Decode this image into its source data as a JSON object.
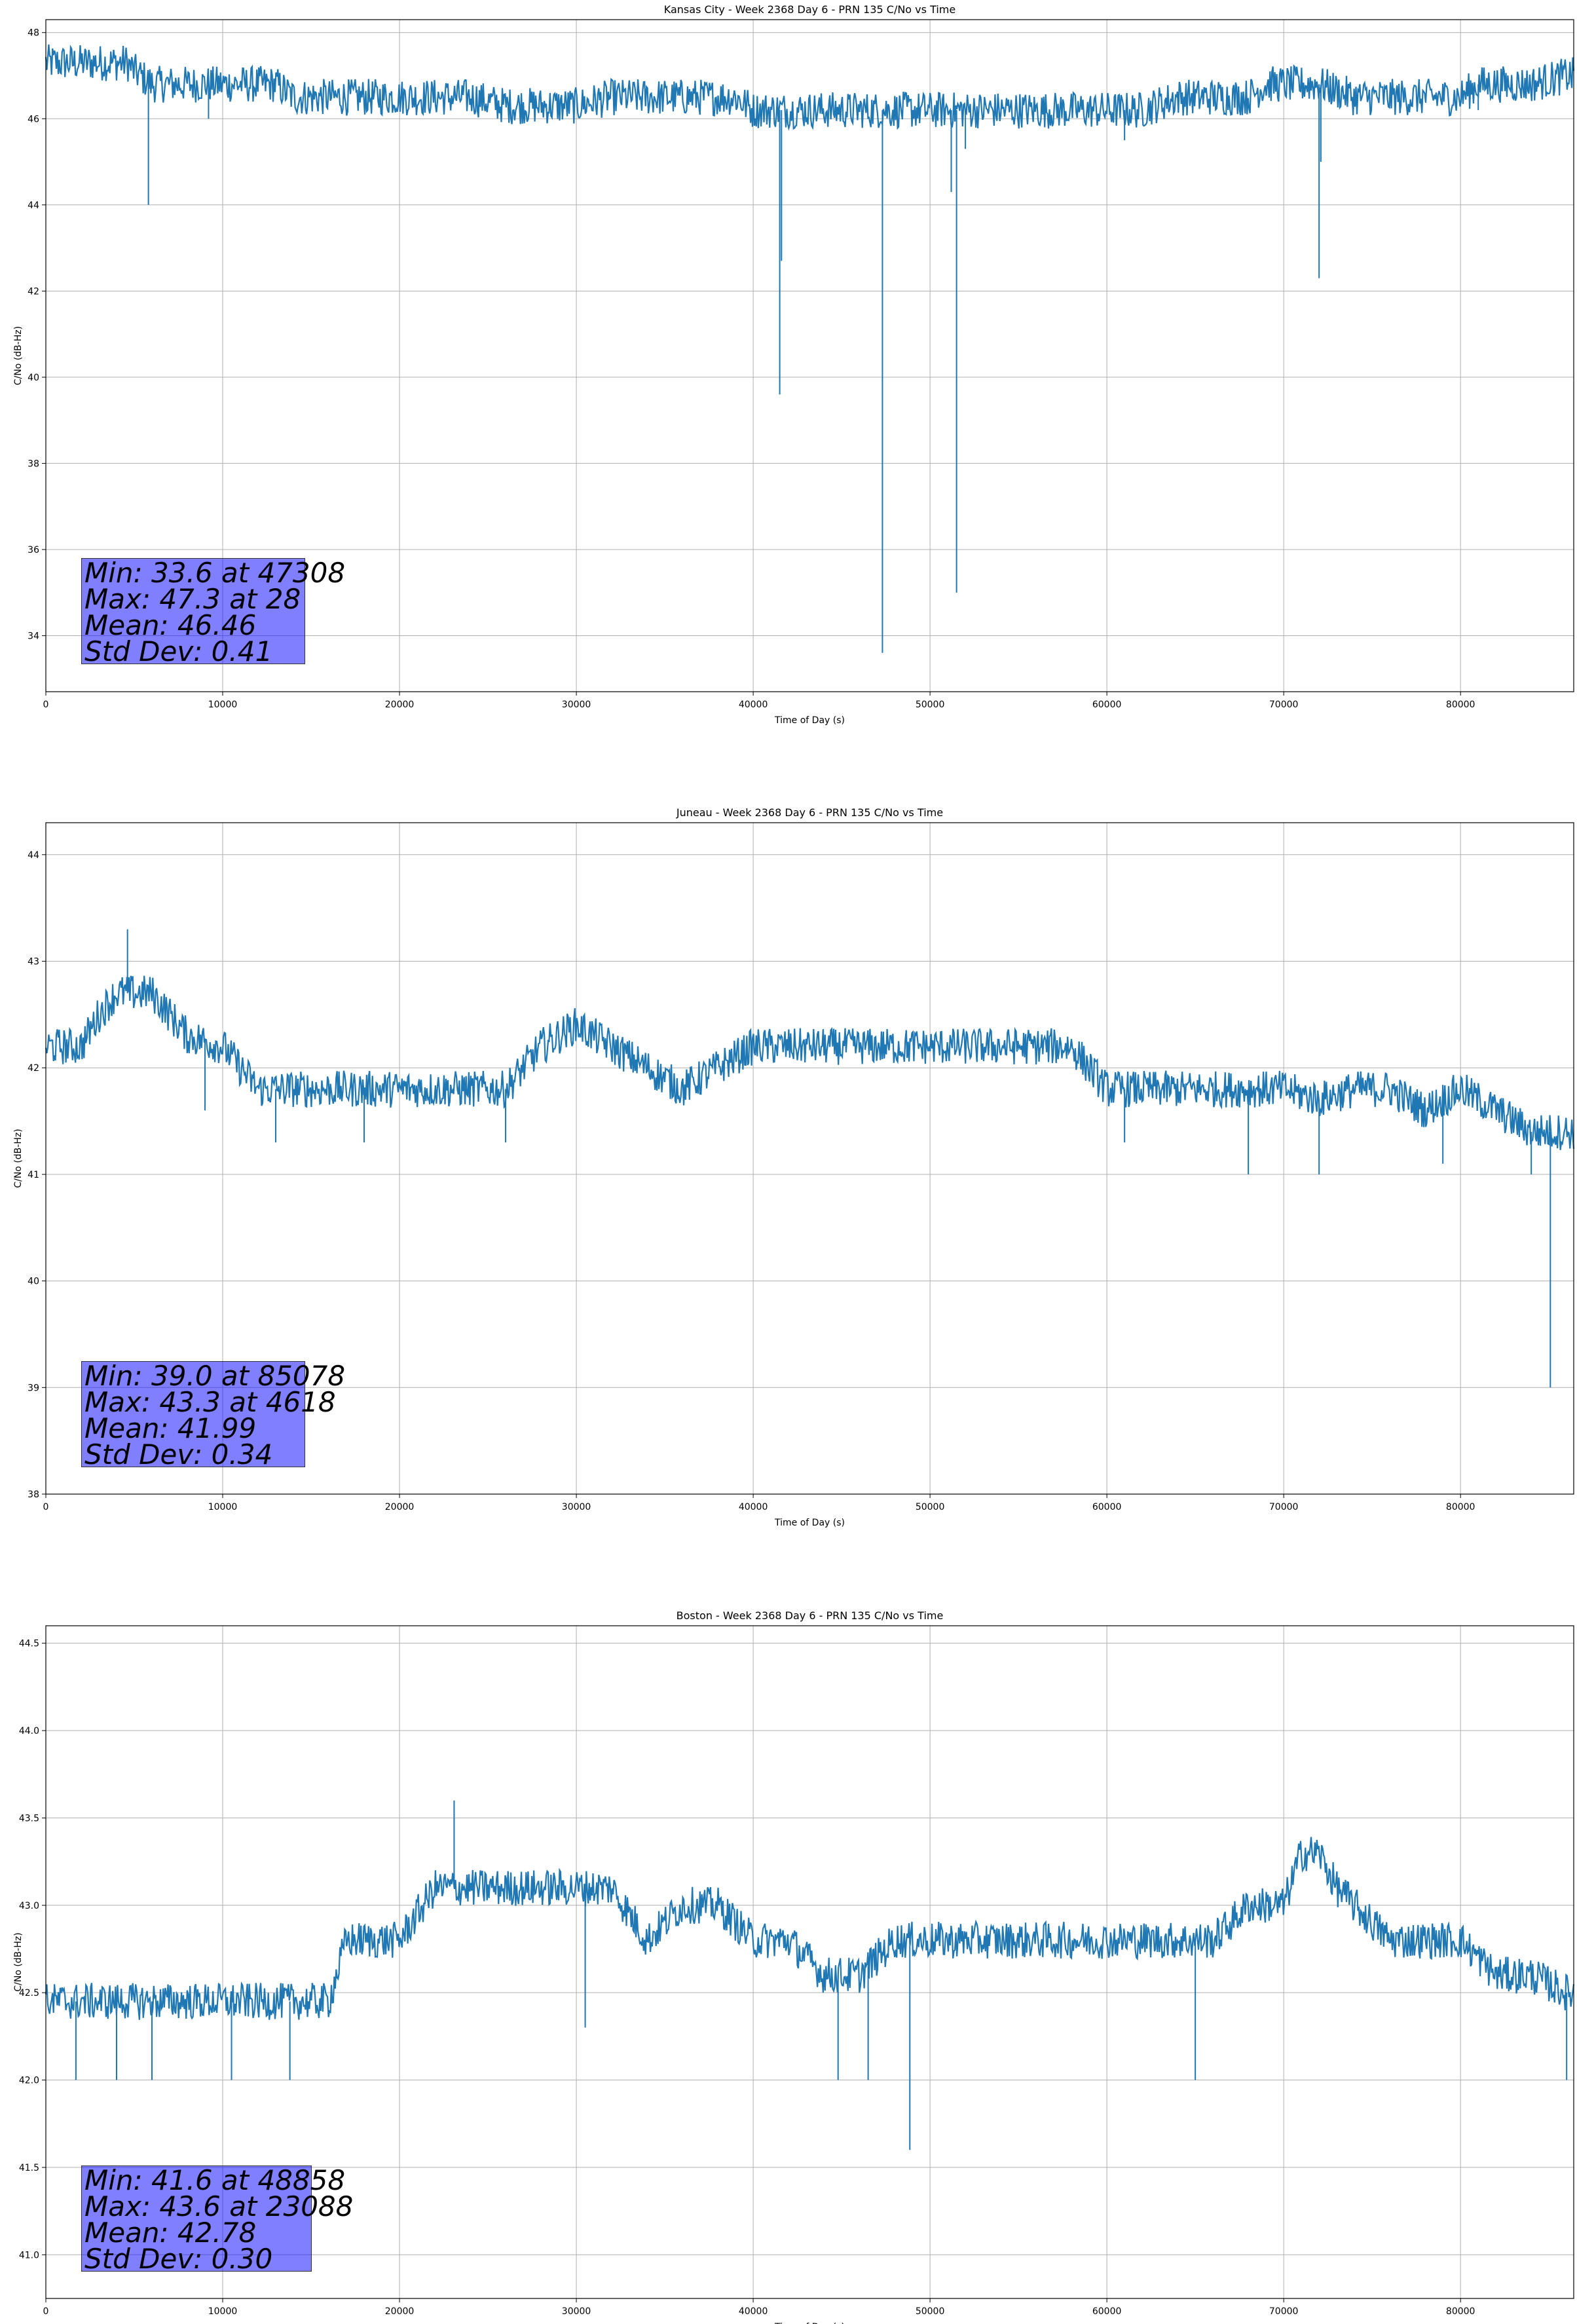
{
  "chart_data": [
    {
      "type": "line",
      "title": "Kansas City - Week 2368 Day 6 - PRN 135 C/No vs Time",
      "xlabel": "Time of Day (s)",
      "ylabel": "C/No (dB-Hz)",
      "xlim": [
        0,
        86400
      ],
      "ylim": [
        32.7,
        48.3
      ],
      "xticks": [
        0,
        10000,
        20000,
        30000,
        40000,
        50000,
        60000,
        70000,
        80000
      ],
      "yticks": [
        34,
        36,
        38,
        40,
        42,
        44,
        46,
        48
      ],
      "ytick_labels": [
        "34",
        "36",
        "38",
        "40",
        "42",
        "44",
        "46",
        "48"
      ],
      "grid": true,
      "color": "#1f77b4",
      "stats": [
        "Min: 33.6 at 47308",
        "Max: 47.3 at 28",
        "Mean: 46.46",
        "Std Dev: 0.41"
      ],
      "series": [
        {
          "x": [
            0,
            2000,
            4000,
            4600,
            5000,
            6000,
            8000,
            10000,
            12000,
            13000,
            14000,
            16000,
            18000,
            20000,
            22000,
            24000,
            26000,
            28000,
            30000,
            32000,
            34000,
            36000,
            38000,
            39000,
            40000,
            41000,
            42000,
            44000,
            46000,
            47000,
            48000,
            50000,
            52000,
            54000,
            56000,
            58000,
            60000,
            62000,
            64000,
            65000,
            66000,
            68000,
            69000,
            70000,
            72000,
            74000,
            76000,
            78000,
            80000,
            81000,
            82000,
            84000,
            86000
          ],
          "base": [
            47.3,
            47.3,
            47.3,
            47.3,
            47.1,
            46.8,
            46.8,
            46.8,
            46.8,
            46.8,
            46.5,
            46.5,
            46.5,
            46.5,
            46.5,
            46.5,
            46.3,
            46.3,
            46.3,
            46.5,
            46.5,
            46.5,
            46.5,
            46.5,
            46.2,
            46.2,
            46.2,
            46.2,
            46.2,
            46.2,
            46.2,
            46.2,
            46.2,
            46.2,
            46.2,
            46.2,
            46.2,
            46.2,
            46.5,
            46.5,
            46.5,
            46.5,
            46.8,
            46.8,
            46.8,
            46.5,
            46.5,
            46.5,
            46.5,
            46.8,
            46.8,
            46.8,
            47.0
          ],
          "spikes": [
            [
              5800,
              44.0
            ],
            [
              9200,
              46.0
            ],
            [
              41500,
              39.6
            ],
            [
              41600,
              42.7
            ],
            [
              47308,
              33.6
            ],
            [
              51200,
              44.3
            ],
            [
              51500,
              35.0
            ],
            [
              52000,
              45.3
            ],
            [
              61000,
              45.5
            ],
            [
              72000,
              42.3
            ],
            [
              72100,
              45.0
            ],
            [
              81000,
              46.2
            ]
          ]
        }
      ]
    },
    {
      "type": "line",
      "title": "Juneau - Week 2368 Day 6 - PRN 135 C/No vs Time",
      "xlabel": "Time of Day (s)",
      "ylabel": "C/No (dB-Hz)",
      "xlim": [
        0,
        86400
      ],
      "ylim": [
        38.0,
        44.3
      ],
      "xticks": [
        0,
        10000,
        20000,
        30000,
        40000,
        50000,
        60000,
        70000,
        80000
      ],
      "yticks": [
        38,
        39,
        40,
        41,
        42,
        43,
        44
      ],
      "ytick_labels": [
        "38",
        "39",
        "40",
        "41",
        "42",
        "43",
        "44"
      ],
      "grid": true,
      "color": "#1f77b4",
      "stats": [
        "Min: 39.0 at 85078",
        "Max: 43.3 at 4618",
        "Mean: 41.99",
        "Std Dev: 0.34"
      ],
      "series": [
        {
          "x": [
            0,
            2000,
            3000,
            4000,
            5000,
            6000,
            7000,
            8000,
            10000,
            12000,
            14000,
            16000,
            18000,
            20000,
            22000,
            24000,
            26000,
            28000,
            30000,
            32000,
            34000,
            36000,
            38000,
            40000,
            42000,
            44000,
            46000,
            48000,
            50000,
            52000,
            54000,
            56000,
            58000,
            60000,
            62000,
            64000,
            66000,
            68000,
            70000,
            72000,
            74000,
            76000,
            78000,
            80000,
            82000,
            84000,
            86000
          ],
          "base": [
            42.2,
            42.2,
            42.5,
            42.7,
            42.7,
            42.7,
            42.5,
            42.3,
            42.2,
            41.8,
            41.8,
            41.8,
            41.8,
            41.8,
            41.8,
            41.8,
            41.8,
            42.2,
            42.4,
            42.2,
            42.0,
            41.8,
            42.0,
            42.2,
            42.2,
            42.2,
            42.2,
            42.2,
            42.2,
            42.2,
            42.2,
            42.2,
            42.2,
            41.8,
            41.8,
            41.8,
            41.8,
            41.8,
            41.8,
            41.7,
            41.8,
            41.8,
            41.6,
            41.8,
            41.6,
            41.4,
            41.4
          ],
          "spikes": [
            [
              4618,
              43.3
            ],
            [
              9000,
              41.6
            ],
            [
              13000,
              41.3
            ],
            [
              18000,
              41.3
            ],
            [
              26000,
              41.3
            ],
            [
              61000,
              41.3
            ],
            [
              68000,
              41.0
            ],
            [
              72000,
              41.0
            ],
            [
              79000,
              41.1
            ],
            [
              84000,
              41.0
            ],
            [
              85078,
              39.0
            ]
          ]
        }
      ]
    },
    {
      "type": "line",
      "title": "Boston - Week 2368 Day 6 - PRN 135 C/No vs Time",
      "xlabel": "Time of Day (s)",
      "ylabel": "C/No (dB-Hz)",
      "xlim": [
        0,
        86400
      ],
      "ylim": [
        40.75,
        44.6
      ],
      "xticks": [
        0,
        10000,
        20000,
        30000,
        40000,
        50000,
        60000,
        70000,
        80000
      ],
      "yticks": [
        41.0,
        41.5,
        42.0,
        42.5,
        43.0,
        43.5,
        44.0,
        44.5
      ],
      "ytick_labels": [
        "41.0",
        "41.5",
        "42.0",
        "42.5",
        "43.0",
        "43.5",
        "44.0",
        "44.5"
      ],
      "grid": true,
      "color": "#1f77b4",
      "stats": [
        "Min: 41.6 at 48858",
        "Max: 43.6 at 23088",
        "Mean: 42.78",
        "Std Dev: 0.30"
      ],
      "series": [
        {
          "x": [
            0,
            2000,
            4000,
            6000,
            8000,
            10000,
            12000,
            14000,
            16000,
            17000,
            18000,
            20000,
            22000,
            24000,
            26000,
            28000,
            30000,
            32000,
            34000,
            36000,
            38000,
            40000,
            42000,
            44000,
            46000,
            48000,
            50000,
            52000,
            54000,
            56000,
            58000,
            60000,
            62000,
            64000,
            66000,
            68000,
            70000,
            71000,
            72000,
            73000,
            74000,
            76000,
            78000,
            80000,
            82000,
            84000,
            86000
          ],
          "base": [
            42.45,
            42.45,
            42.45,
            42.45,
            42.45,
            42.45,
            42.45,
            42.45,
            42.45,
            42.8,
            42.8,
            42.8,
            43.1,
            43.1,
            43.1,
            43.1,
            43.1,
            43.1,
            42.8,
            43.0,
            43.0,
            42.8,
            42.8,
            42.6,
            42.6,
            42.8,
            42.8,
            42.8,
            42.8,
            42.8,
            42.8,
            42.8,
            42.8,
            42.8,
            42.8,
            43.0,
            43.0,
            43.3,
            43.3,
            43.1,
            43.0,
            42.8,
            42.8,
            42.8,
            42.6,
            42.6,
            42.5
          ],
          "spikes": [
            [
              1700,
              42.0
            ],
            [
              4000,
              42.0
            ],
            [
              6000,
              42.0
            ],
            [
              10500,
              42.0
            ],
            [
              13800,
              42.0
            ],
            [
              23088,
              43.6
            ],
            [
              30500,
              42.3
            ],
            [
              44800,
              42.0
            ],
            [
              46500,
              42.0
            ],
            [
              48858,
              41.6
            ],
            [
              65000,
              42.0
            ],
            [
              86000,
              42.0
            ]
          ]
        }
      ]
    }
  ]
}
